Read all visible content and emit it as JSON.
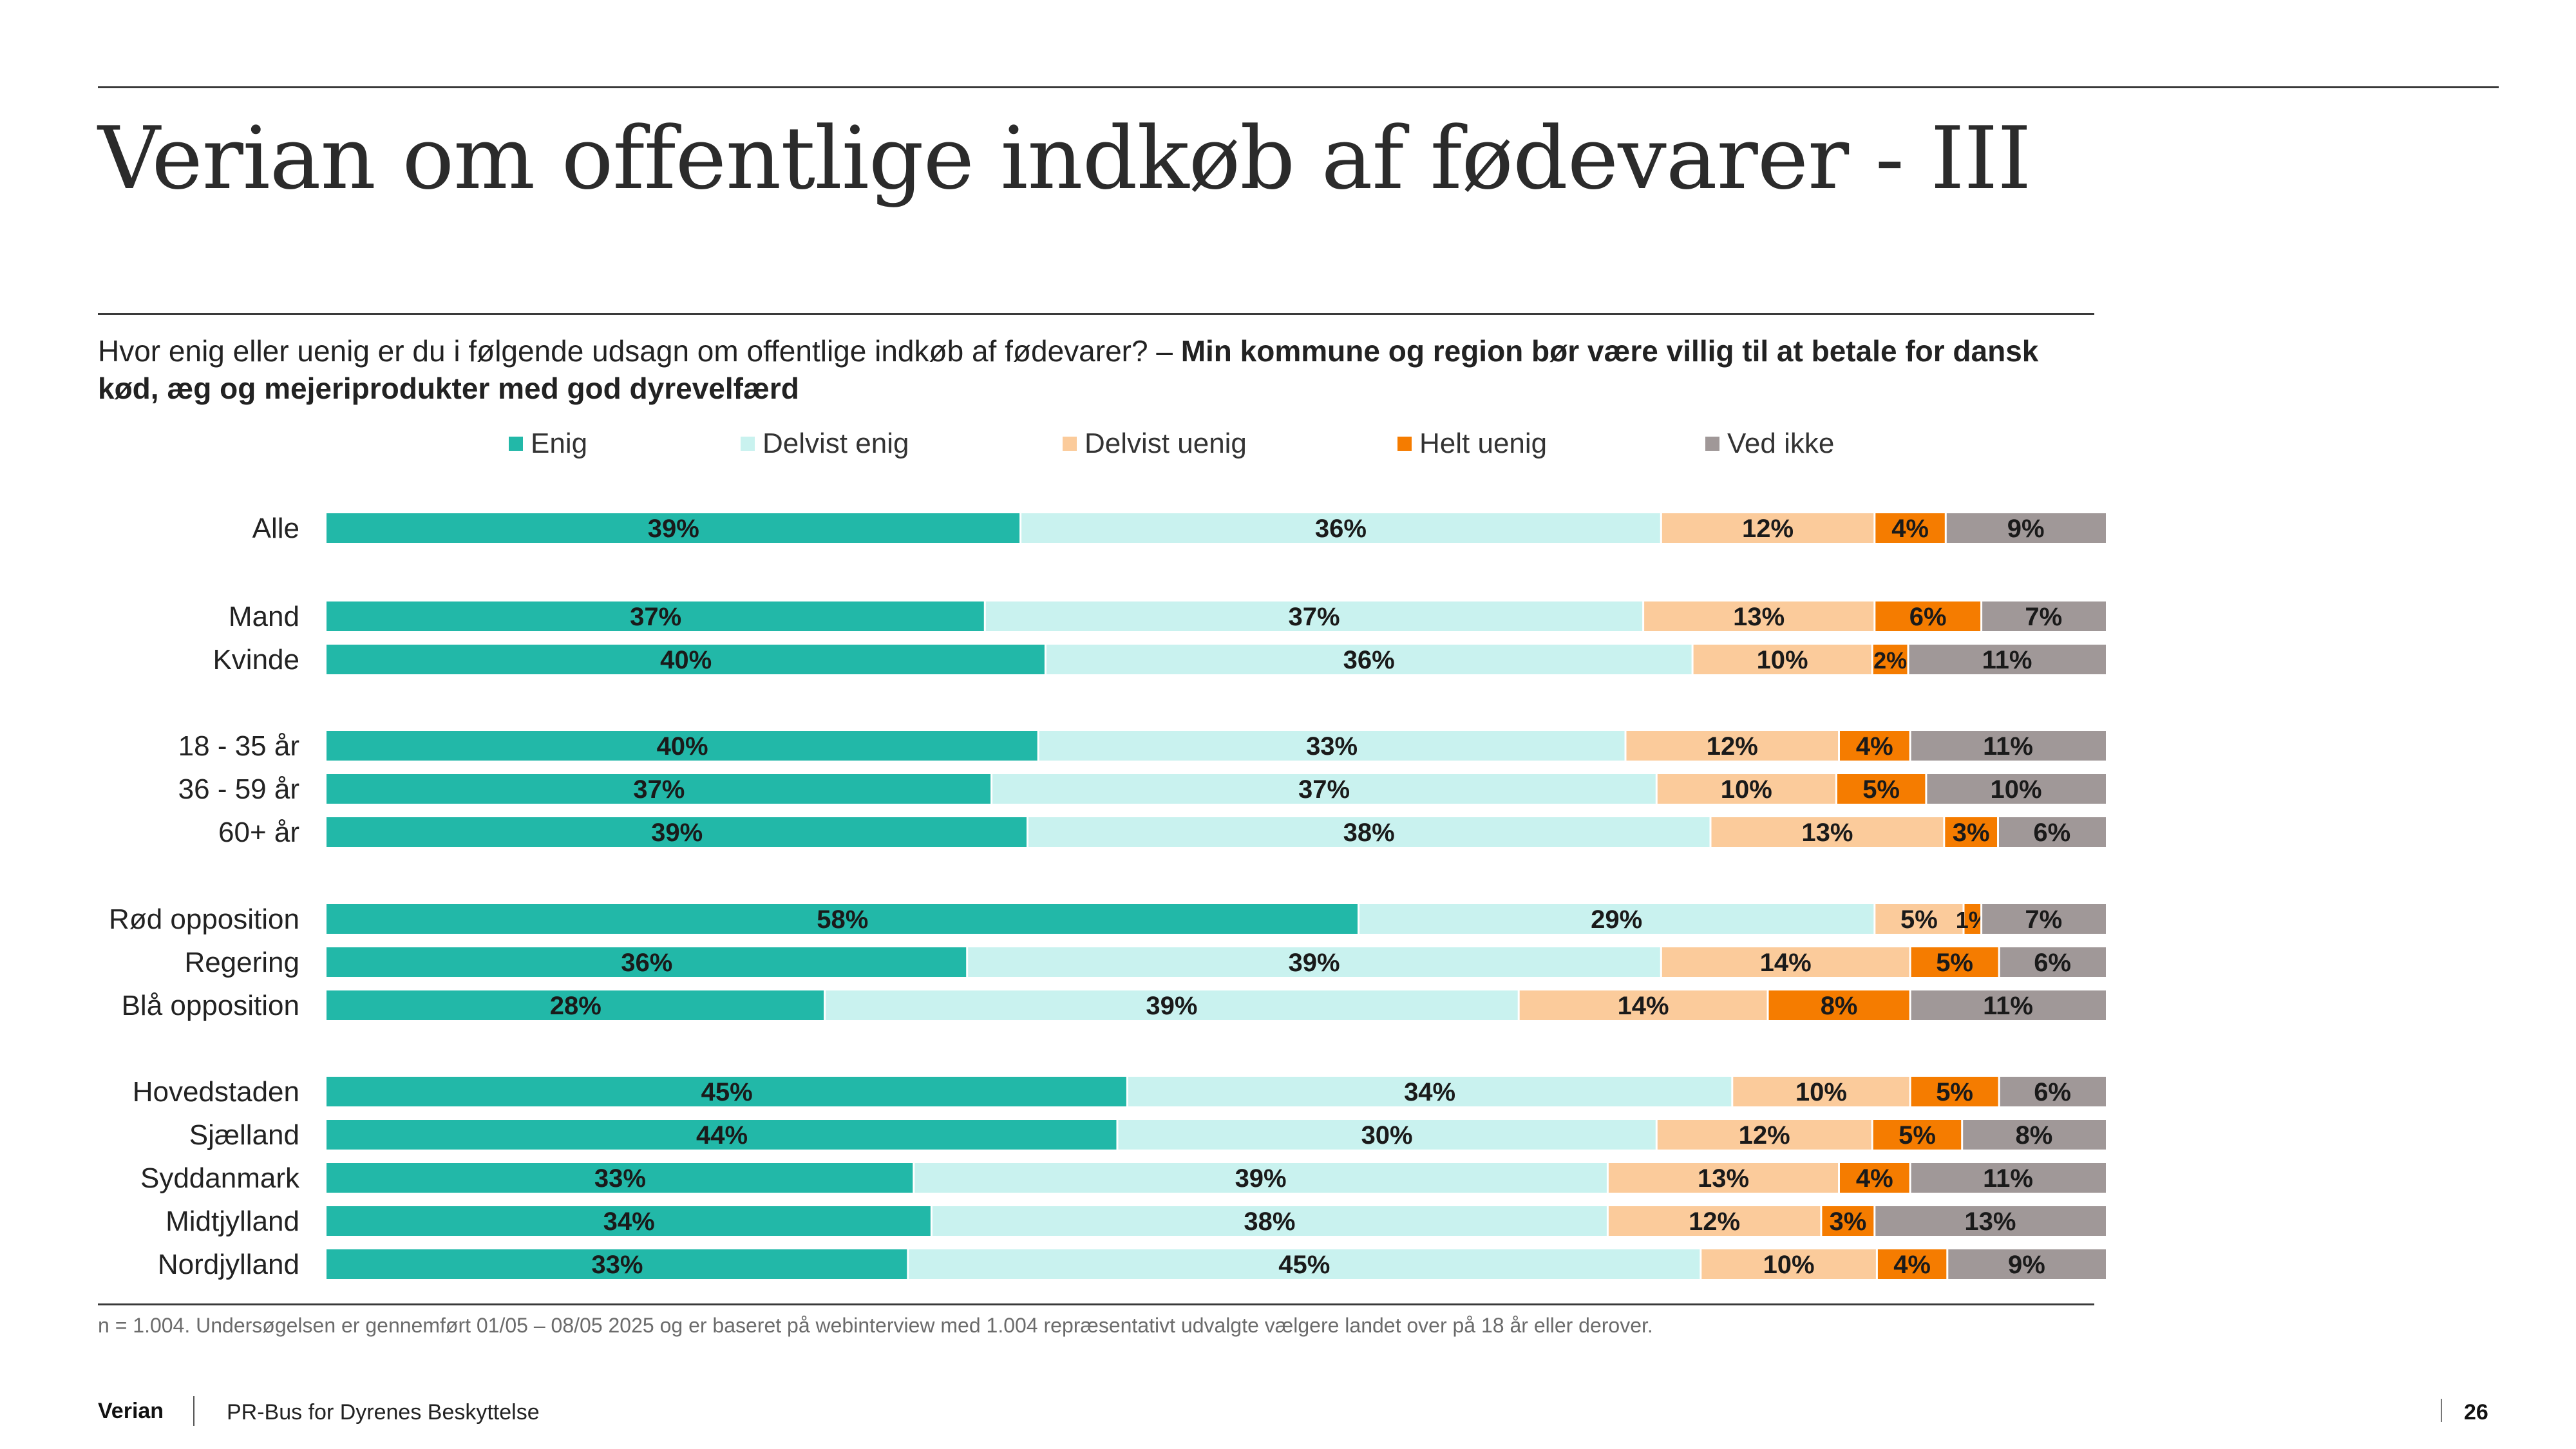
{
  "header": {
    "title": "Verian om offentlige indkøb af fødevarer - III"
  },
  "question": {
    "text": "Hvor enig eller uenig er du i følgende udsagn om offentlige indkøb af fødevarer? – ",
    "bold": "Min kommune og region bør være villig til at betale for dansk kød, æg og mejeriprodukter med god dyrevelfærd"
  },
  "colors": {
    "enig": "#22b8a8",
    "delvist_enig": "#c9f2ef",
    "delvist_uenig": "#fbcb9b",
    "helt_uenig": "#f57c00",
    "ved_ikke": "#a09898"
  },
  "chart_data": {
    "type": "bar",
    "orientation": "horizontal",
    "stacked": true,
    "value_suffix": "%",
    "categories": [
      "Alle",
      "Mand",
      "Kvinde",
      "18 - 35 år",
      "36 - 59 år",
      "60+ år",
      "Rød opposition",
      "Regering",
      "Blå opposition",
      "Hovedstaden",
      "Sjælland",
      "Syddanmark",
      "Midtjylland",
      "Nordjylland"
    ],
    "groups": [
      [
        0
      ],
      [
        1,
        2
      ],
      [
        3,
        4,
        5
      ],
      [
        6,
        7,
        8
      ],
      [
        9,
        10,
        11,
        12,
        13
      ]
    ],
    "series": [
      {
        "name": "Enig",
        "color": "#22b8a8",
        "values": [
          39,
          37,
          40,
          40,
          37,
          39,
          58,
          36,
          28,
          45,
          44,
          33,
          34,
          33
        ]
      },
      {
        "name": "Delvist enig",
        "color": "#c9f2ef",
        "values": [
          36,
          37,
          36,
          33,
          37,
          38,
          29,
          39,
          39,
          34,
          30,
          39,
          38,
          45
        ]
      },
      {
        "name": "Delvist uenig",
        "color": "#fbcb9b",
        "values": [
          12,
          13,
          10,
          12,
          10,
          13,
          5,
          14,
          14,
          10,
          12,
          13,
          12,
          10
        ]
      },
      {
        "name": "Helt uenig",
        "color": "#f57c00",
        "values": [
          4,
          6,
          2,
          4,
          5,
          3,
          1,
          5,
          8,
          5,
          5,
          4,
          3,
          4
        ]
      },
      {
        "name": "Ved ikke",
        "color": "#a09898",
        "values": [
          9,
          7,
          11,
          11,
          10,
          6,
          7,
          6,
          11,
          6,
          8,
          11,
          13,
          9
        ]
      }
    ],
    "legend_position": "top"
  },
  "footnote": "n = 1.004. Undersøgelsen er gennemført 01/05 – 08/05 2025 og er baseret på webinterview med 1.004 repræsentativt udvalgte vælgere landet over på 18 år eller derover.",
  "footer": {
    "brand": "Verian",
    "client": "PR-Bus for Dyrenes Beskyttelse",
    "page": "26"
  }
}
